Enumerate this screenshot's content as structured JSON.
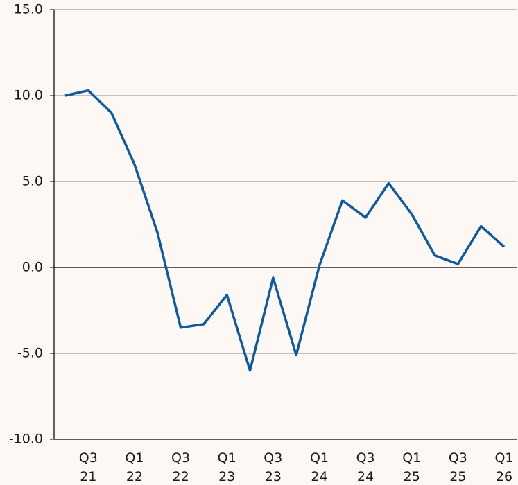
{
  "chart_data": {
    "type": "line",
    "categories": [
      null,
      "Q3 21",
      null,
      "Q1 22",
      null,
      "Q3 22",
      null,
      "Q1 23",
      null,
      "Q3 23",
      null,
      "Q1 24",
      null,
      "Q3 24",
      null,
      "Q1 25",
      null,
      "Q3 25",
      null,
      "Q1 26"
    ],
    "series": [
      {
        "color": "#0b5aa6",
        "values": [
          10.0,
          10.3,
          9.0,
          6.0,
          2.0,
          -3.5,
          -3.3,
          -1.6,
          -6.0,
          -0.6,
          -5.1,
          0.1,
          3.9,
          2.9,
          4.9,
          3.1,
          0.7,
          0.2,
          2.4,
          1.2
        ]
      }
    ],
    "ylim": [
      -10,
      15
    ],
    "yticks": [
      {
        "value": -10,
        "label": "-10.0"
      },
      {
        "value": -5,
        "label": "-5.0"
      },
      {
        "value": 0,
        "label": "0.0"
      },
      {
        "value": 5,
        "label": "5.0"
      },
      {
        "value": 10,
        "label": "10.0"
      },
      {
        "value": 15,
        "label": "15.0"
      }
    ],
    "grid": true
  }
}
